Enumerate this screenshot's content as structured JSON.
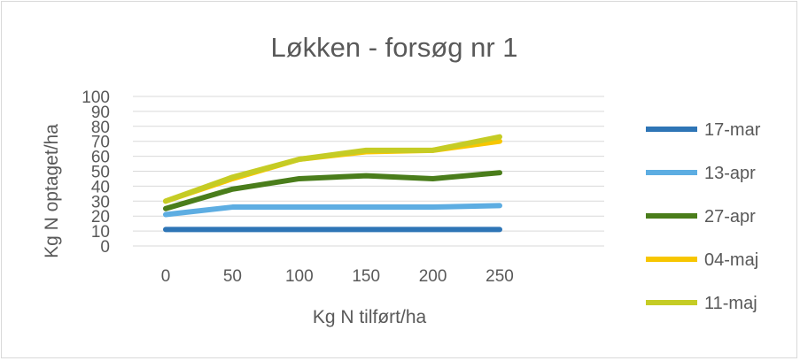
{
  "chart_data": {
    "type": "line",
    "title": "Løkken - forsøg nr 1",
    "xlabel": "Kg N tilført/ha",
    "ylabel": "Kg N optaget/ha",
    "categories": [
      "0",
      "50",
      "100",
      "150",
      "200",
      "250"
    ],
    "y_ticks": [
      "0",
      "10",
      "20",
      "30",
      "40",
      "50",
      "60",
      "70",
      "80",
      "90",
      "100"
    ],
    "ylim": [
      0,
      100
    ],
    "grid": true,
    "legend_position": "right",
    "series": [
      {
        "name": "17-mar",
        "color": "#2e75b6",
        "values": [
          11,
          11,
          11,
          11,
          11,
          11
        ]
      },
      {
        "name": "13-apr",
        "color": "#5dade2",
        "values": [
          21,
          26,
          26,
          26,
          26,
          27
        ]
      },
      {
        "name": "27-apr",
        "color": "#4a7d1b",
        "values": [
          25,
          38,
          45,
          47,
          45,
          49
        ]
      },
      {
        "name": "04-maj",
        "color": "#f7c600",
        "values": [
          30,
          45,
          58,
          63,
          64,
          70
        ]
      },
      {
        "name": "11-maj",
        "color": "#c5cc25",
        "values": [
          30,
          46,
          58,
          64,
          64,
          73
        ]
      }
    ]
  }
}
